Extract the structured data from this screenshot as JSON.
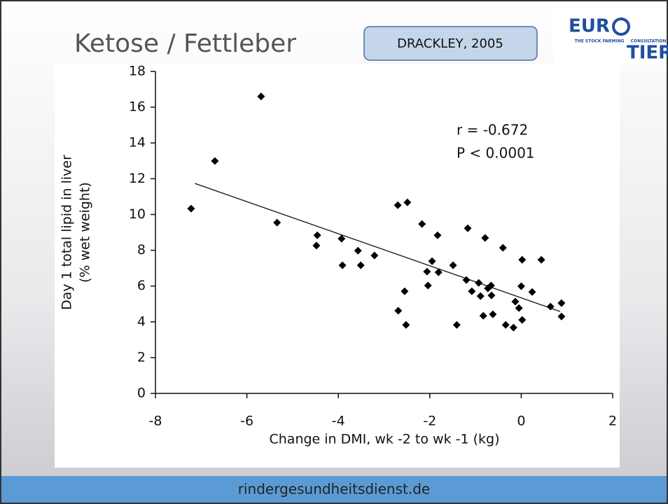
{
  "slide": {
    "title": "Ketose / Fettleber",
    "source": "DRACKLEY, 2005",
    "logo": [
      "EUR",
      "TIER",
      "THE STOCK FARMING",
      "CONSULTATION"
    ],
    "footer": "rindergesundheitsdienst.de"
  },
  "chart_data": {
    "type": "scatter",
    "xlabel": "Change in DMI, wk -2 to wk -1 (kg)",
    "ylabel": [
      "Day 1 total lipid in liver",
      "(% wet weight)"
    ],
    "annotations": [
      "r = -0.672",
      "P < 0.0001"
    ],
    "color": "#000000",
    "x": [
      -7.22,
      -6.7,
      -5.69,
      -5.34,
      -4.46,
      -4.48,
      -3.93,
      -3.91,
      -3.57,
      -3.51,
      -3.21,
      -2.7,
      -2.49,
      -2.69,
      -2.55,
      -2.52,
      -2.17,
      -2.06,
      -2.04,
      -1.95,
      -1.83,
      -1.81,
      -1.49,
      -1.41,
      -1.2,
      -1.17,
      -1.08,
      -0.93,
      -0.89,
      -0.83,
      -0.79,
      -0.73,
      -0.66,
      -0.65,
      -0.62,
      -0.4,
      -0.34,
      -0.17,
      -0.13,
      -0.05,
      0.0,
      0.02,
      0.02,
      0.24,
      0.44,
      0.64,
      0.88,
      0.88
    ],
    "values": [
      10.33,
      12.99,
      16.6,
      9.55,
      8.84,
      8.26,
      8.65,
      7.16,
      7.98,
      7.16,
      7.71,
      10.52,
      10.68,
      4.62,
      5.71,
      3.83,
      9.47,
      6.81,
      6.03,
      7.39,
      8.84,
      6.77,
      7.16,
      3.83,
      6.34,
      9.23,
      5.71,
      6.18,
      5.44,
      4.34,
      8.69,
      5.87,
      6.03,
      5.48,
      4.42,
      8.14,
      3.83,
      3.68,
      5.13,
      4.77,
      5.99,
      7.47,
      4.11,
      5.67,
      7.47,
      4.85,
      5.05,
      4.3
    ],
    "trend_line": {
      "x": [
        -7.14,
        0.85
      ],
      "values": [
        11.74,
        4.58
      ]
    },
    "xlim": [
      -8,
      2
    ],
    "xticks": [
      -8,
      -6,
      -4,
      -2,
      0,
      2
    ],
    "ylim": [
      0,
      18
    ],
    "yticks": [
      0,
      2,
      4,
      6,
      8,
      10,
      12,
      14,
      16,
      18
    ],
    "grid": false
  }
}
